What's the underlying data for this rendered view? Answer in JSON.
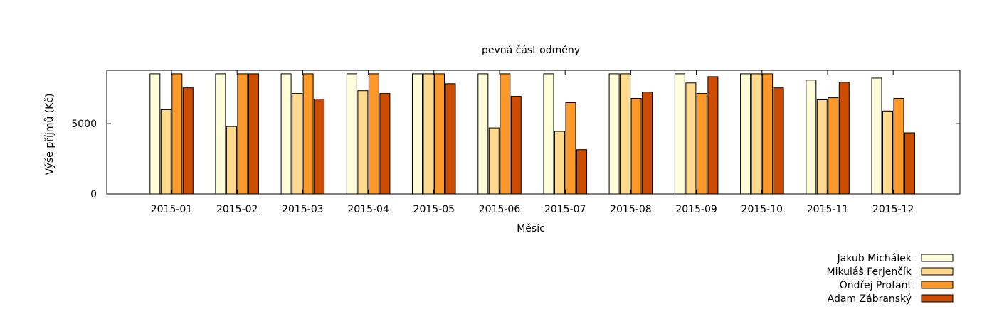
{
  "chart_data": {
    "type": "bar",
    "title": "pevná část odměny",
    "xlabel": "Měsíc",
    "ylabel": "Výše příjmů (Kč)",
    "ylim": [
      0,
      8800
    ],
    "yticks": [
      0,
      5000
    ],
    "grid": false,
    "legend_position": "bottom-right",
    "categories": [
      "2015-01",
      "2015-02",
      "2015-03",
      "2015-04",
      "2015-05",
      "2015-06",
      "2015-07",
      "2015-08",
      "2015-09",
      "2015-10",
      "2015-11",
      "2015-12"
    ],
    "series": [
      {
        "name": "Jakub Michálek",
        "color": "#fffcd9",
        "values": [
          8550,
          8550,
          8550,
          8550,
          8550,
          8550,
          8550,
          8550,
          8550,
          8550,
          8100,
          8250
        ]
      },
      {
        "name": "Mikuláš Ferjenčík",
        "color": "#fed98e",
        "values": [
          6000,
          4800,
          7150,
          7350,
          8550,
          4700,
          4450,
          8550,
          7900,
          8550,
          6700,
          5900
        ]
      },
      {
        "name": "Ondřej Profant",
        "color": "#fe9929",
        "values": [
          8550,
          8550,
          8550,
          8550,
          8550,
          8550,
          6500,
          6800,
          7150,
          8550,
          6850,
          6800
        ]
      },
      {
        "name": "Adam Zábranský",
        "color": "#cc4c02",
        "values": [
          7550,
          8550,
          6750,
          7150,
          7850,
          6950,
          3150,
          7250,
          8350,
          7550,
          7950,
          4350
        ]
      }
    ]
  }
}
